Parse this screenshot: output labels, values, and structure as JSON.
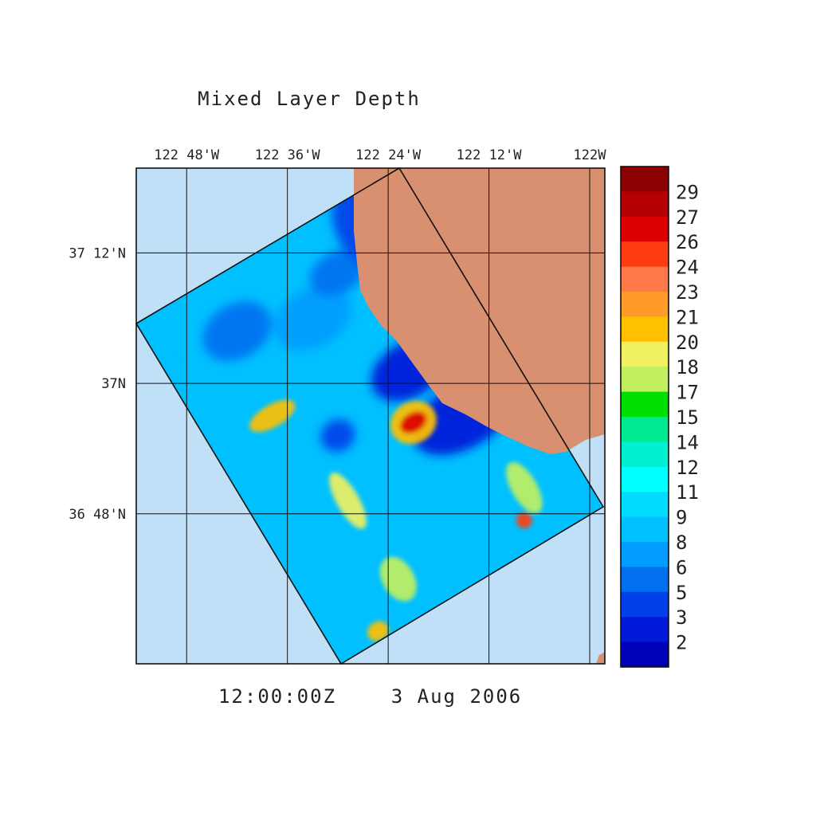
{
  "chart_data": {
    "type": "heatmap",
    "title": "Mixed Layer Depth",
    "time_label": "12:00:00Z",
    "date_label": "3 Aug 2006",
    "x_axis": {
      "position": "top",
      "range": [
        -122.9,
        -121.97
      ],
      "ticks": [
        {
          "value": -122.8,
          "label": "122 48'W"
        },
        {
          "value": -122.6,
          "label": "122 36'W"
        },
        {
          "value": -122.4,
          "label": "122 24'W"
        },
        {
          "value": -122.2,
          "label": "122 12'W"
        },
        {
          "value": -122.0,
          "label": "122W"
        }
      ]
    },
    "y_axis": {
      "position": "left",
      "range": [
        36.57,
        37.33
      ],
      "ticks": [
        {
          "value": 37.2,
          "label": "37 12'N"
        },
        {
          "value": 37.0,
          "label": "37N"
        },
        {
          "value": 36.8,
          "label": "36 48'N"
        }
      ]
    },
    "grid": true,
    "colorbar": {
      "position": "right",
      "labels": [
        "29",
        "27",
        "26",
        "24",
        "23",
        "21",
        "20",
        "18",
        "17",
        "15",
        "14",
        "12",
        "11",
        "9",
        "8",
        "6",
        "5",
        "3",
        "2"
      ],
      "colors": [
        "#8b0000",
        "#b40000",
        "#dc0000",
        "#ff3c10",
        "#ff7848",
        "#ff9a28",
        "#ffc000",
        "#f0f060",
        "#c0f060",
        "#00e000",
        "#00e890",
        "#00f0d0",
        "#00ffff",
        "#00dcff",
        "#00c0ff",
        "#009cff",
        "#0070f0",
        "#0040e8",
        "#0018d8",
        "#0000b8"
      ]
    },
    "colors": {
      "ocean": "#c0e0f8",
      "land": "#d89070",
      "field_base": "#00c0ff"
    },
    "features": [
      {
        "lon": -122.86,
        "lat": 37.0,
        "level": 8
      },
      {
        "lon": -122.7,
        "lat": 37.08,
        "level": 5
      },
      {
        "lon": -122.55,
        "lat": 37.1,
        "level": 6
      },
      {
        "lon": -122.5,
        "lat": 37.17,
        "level": 5
      },
      {
        "lon": -122.44,
        "lat": 37.24,
        "level": 3
      },
      {
        "lon": -122.36,
        "lat": 37.02,
        "level": 2
      },
      {
        "lon": -122.25,
        "lat": 36.95,
        "level": 2
      },
      {
        "lon": -122.35,
        "lat": 36.94,
        "level": 20
      },
      {
        "lon": -122.35,
        "lat": 36.94,
        "level": 26
      },
      {
        "lon": -122.5,
        "lat": 36.92,
        "level": 3
      },
      {
        "lon": -122.63,
        "lat": 36.95,
        "level": 20
      },
      {
        "lon": -122.13,
        "lat": 36.84,
        "level": 17
      },
      {
        "lon": -122.13,
        "lat": 36.79,
        "level": 24
      },
      {
        "lon": -122.48,
        "lat": 36.82,
        "level": 18
      },
      {
        "lon": -122.38,
        "lat": 36.7,
        "level": 17
      },
      {
        "lon": -122.42,
        "lat": 36.62,
        "level": 20
      }
    ]
  }
}
